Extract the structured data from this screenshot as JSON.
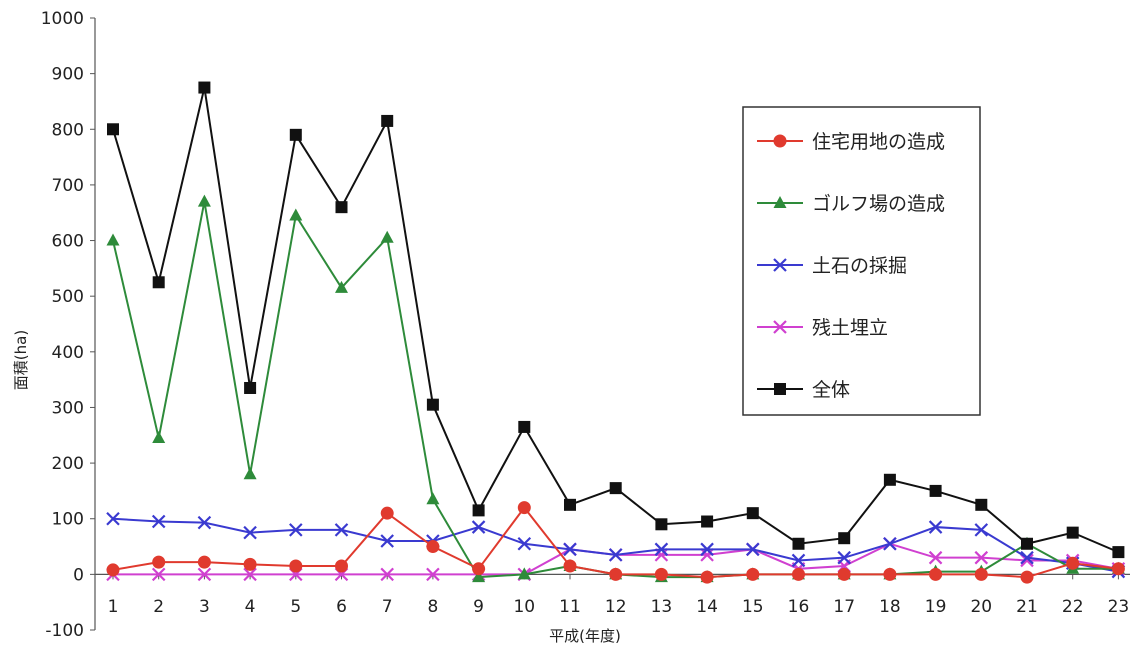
{
  "chart_data": {
    "type": "line",
    "xlabel": "平成(年度)",
    "ylabel": "面積(ha)",
    "ylim": [
      -100,
      1000
    ],
    "y_ticks": [
      "-100",
      "0",
      "100",
      "200",
      "300",
      "400",
      "500",
      "600",
      "700",
      "800",
      "900",
      "1000"
    ],
    "categories": [
      "1",
      "2",
      "3",
      "4",
      "5",
      "6",
      "7",
      "8",
      "9",
      "10",
      "11",
      "12",
      "13",
      "14",
      "15",
      "16",
      "17",
      "18",
      "19",
      "20",
      "21",
      "22",
      "23"
    ],
    "grid": false,
    "legend_position": "right",
    "series": [
      {
        "name": "住宅用地の造成",
        "color": "#e03a2e",
        "marker": "circle",
        "values": [
          8,
          22,
          22,
          18,
          15,
          15,
          110,
          50,
          10,
          120,
          15,
          0,
          0,
          -5,
          0,
          0,
          0,
          0,
          0,
          0,
          -5,
          20,
          10
        ]
      },
      {
        "name": "ゴルフ場の造成",
        "color": "#2e8b3a",
        "marker": "triangle",
        "values": [
          600,
          245,
          670,
          180,
          645,
          515,
          605,
          135,
          -5,
          0,
          15,
          0,
          -5,
          -5,
          0,
          0,
          0,
          0,
          5,
          5,
          55,
          10,
          10
        ]
      },
      {
        "name": "土石の採掘",
        "color": "#3a3ad0",
        "marker": "x",
        "values": [
          100,
          95,
          93,
          75,
          80,
          80,
          60,
          60,
          85,
          55,
          45,
          35,
          45,
          45,
          45,
          25,
          30,
          55,
          85,
          80,
          30,
          20,
          5
        ]
      },
      {
        "name": "残土埋立",
        "color": "#d040d0",
        "marker": "x",
        "values": [
          0,
          0,
          0,
          0,
          0,
          0,
          0,
          0,
          0,
          0,
          45,
          35,
          35,
          35,
          45,
          10,
          15,
          55,
          30,
          30,
          25,
          25,
          10
        ]
      },
      {
        "name": "全体",
        "color": "#111111",
        "marker": "square",
        "values": [
          800,
          525,
          875,
          335,
          790,
          660,
          815,
          305,
          115,
          265,
          125,
          155,
          90,
          95,
          110,
          55,
          65,
          170,
          150,
          125,
          55,
          75,
          40
        ]
      }
    ]
  }
}
